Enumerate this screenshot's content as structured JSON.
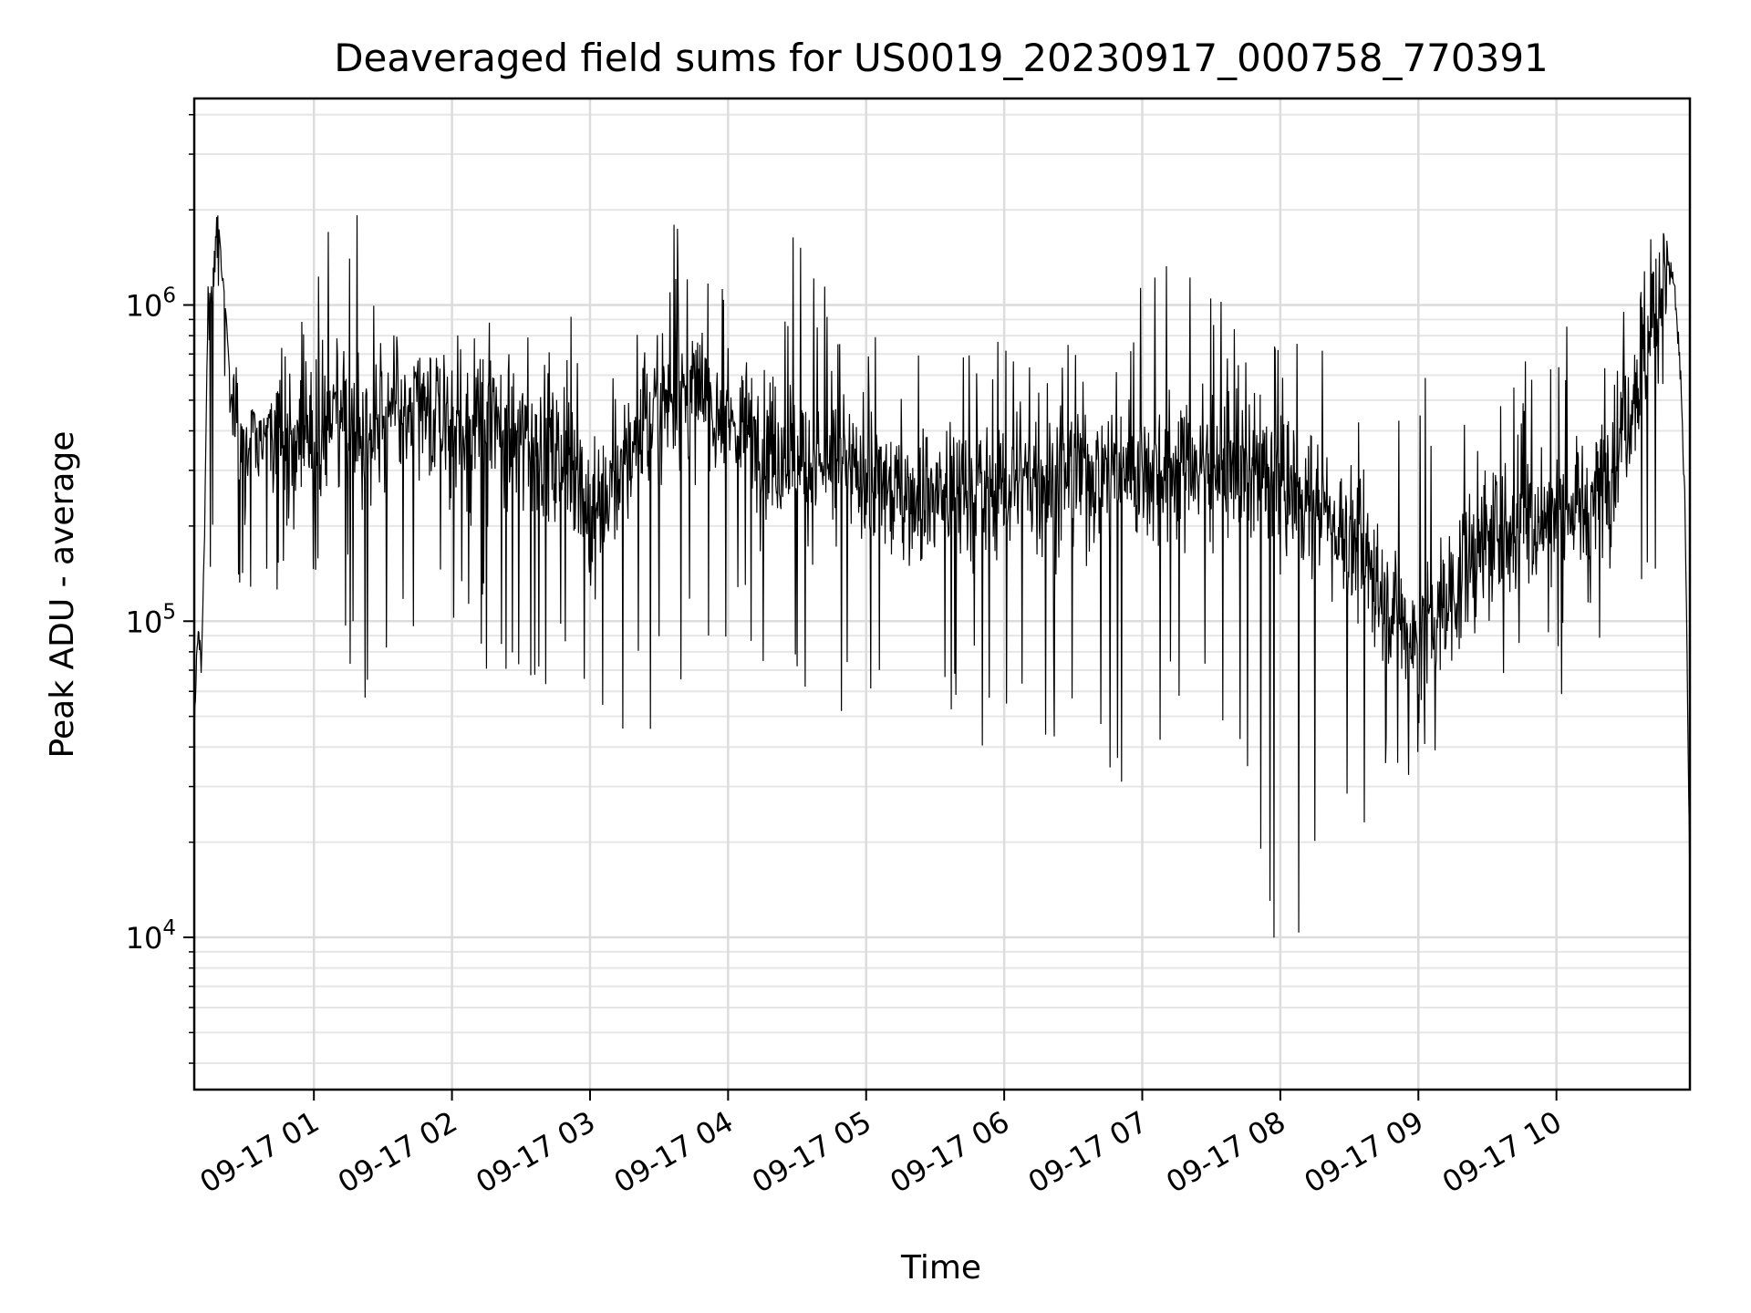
{
  "chart_data": {
    "type": "line",
    "title": "Deaveraged field sums for US0019_20230917_000758_770391",
    "xlabel": "Time",
    "ylabel": "Peak ADU - average",
    "yscale": "log",
    "ylim": [
      3300,
      4500000
    ],
    "xlim": [
      "2023-09-17 00:08",
      "2023-09-17 10:58"
    ],
    "grid": true,
    "line_color": "#000000",
    "x_ticks": [
      {
        "value": "2023-09-17 01:00",
        "label": "09-17 01"
      },
      {
        "value": "2023-09-17 02:00",
        "label": "09-17 02"
      },
      {
        "value": "2023-09-17 03:00",
        "label": "09-17 03"
      },
      {
        "value": "2023-09-17 04:00",
        "label": "09-17 04"
      },
      {
        "value": "2023-09-17 05:00",
        "label": "09-17 05"
      },
      {
        "value": "2023-09-17 06:00",
        "label": "09-17 06"
      },
      {
        "value": "2023-09-17 07:00",
        "label": "09-17 07"
      },
      {
        "value": "2023-09-17 08:00",
        "label": "09-17 08"
      },
      {
        "value": "2023-09-17 09:00",
        "label": "09-17 09"
      },
      {
        "value": "2023-09-17 10:00",
        "label": "09-17 10"
      }
    ],
    "y_ticks": [
      {
        "value": 10000,
        "base": "10",
        "exp": "4"
      },
      {
        "value": 100000,
        "base": "10",
        "exp": "5"
      },
      {
        "value": 1000000,
        "base": "10",
        "exp": "6"
      }
    ],
    "series": [
      {
        "x": [
          "2023-09-17 00:08",
          "2023-09-17 00:09",
          "2023-09-17 00:10",
          "2023-09-17 00:11",
          "2023-09-17 00:12",
          "2023-09-17 00:13",
          "2023-09-17 00:14",
          "2023-09-17 00:15",
          "2023-09-17 00:16",
          "2023-09-17 00:18",
          "2023-09-17 00:20",
          "2023-09-17 00:22",
          "2023-09-17 00:24",
          "2023-09-17 00:26",
          "2023-09-17 00:28",
          "2023-09-17 00:30",
          "2023-09-17 00:33",
          "2023-09-17 00:36",
          "2023-09-17 00:40",
          "2023-09-17 00:45",
          "2023-09-17 00:50",
          "2023-09-17 00:55",
          "2023-09-17 01:00",
          "2023-09-17 01:10",
          "2023-09-17 01:20",
          "2023-09-17 01:30",
          "2023-09-17 01:40",
          "2023-09-17 01:50",
          "2023-09-17 02:00",
          "2023-09-17 02:15",
          "2023-09-17 02:30",
          "2023-09-17 02:45",
          "2023-09-17 02:55",
          "2023-09-17 03:00",
          "2023-09-17 03:10",
          "2023-09-17 03:20",
          "2023-09-17 03:30",
          "2023-09-17 03:40",
          "2023-09-17 03:50",
          "2023-09-17 04:00",
          "2023-09-17 04:15",
          "2023-09-17 04:30",
          "2023-09-17 04:45",
          "2023-09-17 05:00",
          "2023-09-17 05:20",
          "2023-09-17 05:40",
          "2023-09-17 06:00",
          "2023-09-17 06:20",
          "2023-09-17 06:40",
          "2023-09-17 07:00",
          "2023-09-17 07:20",
          "2023-09-17 07:40",
          "2023-09-17 08:00",
          "2023-09-17 08:20",
          "2023-09-17 08:40",
          "2023-09-17 08:50",
          "2023-09-17 09:00",
          "2023-09-17 09:10",
          "2023-09-17 09:20",
          "2023-09-17 09:30",
          "2023-09-17 09:45",
          "2023-09-17 10:00",
          "2023-09-17 10:10",
          "2023-09-17 10:20",
          "2023-09-17 10:30",
          "2023-09-17 10:35",
          "2023-09-17 10:40",
          "2023-09-17 10:45",
          "2023-09-17 10:48",
          "2023-09-17 10:51",
          "2023-09-17 10:54",
          "2023-09-17 10:56",
          "2023-09-17 10:58"
        ],
        "values": [
          45000,
          75000,
          95000,
          70000,
          140000,
          350000,
          1050000,
          950000,
          1100000,
          1800000,
          1200000,
          800000,
          450000,
          600000,
          380000,
          350000,
          420000,
          380000,
          400000,
          420000,
          380000,
          420000,
          400000,
          450000,
          420000,
          460000,
          430000,
          440000,
          420000,
          390000,
          380000,
          350000,
          300000,
          200000,
          280000,
          360000,
          480000,
          520000,
          500000,
          420000,
          380000,
          330000,
          300000,
          280000,
          250000,
          260000,
          270000,
          280000,
          300000,
          310000,
          320000,
          300000,
          280000,
          220000,
          150000,
          100000,
          90000,
          110000,
          140000,
          180000,
          200000,
          220000,
          230000,
          280000,
          420000,
          600000,
          800000,
          1100000,
          1300000,
          1200000,
          600000,
          200000,
          14000
        ],
        "envelope": {
          "upper": [
            120000,
            180000,
            250000,
            800000,
            1300000,
            2500000,
            1400000,
            700000,
            700000,
            850000,
            900000,
            950000,
            900000,
            950000,
            850000,
            800000,
            1800000,
            1700000,
            1900000,
            1900000,
            1700000,
            1200000,
            900000,
            850000,
            800000,
            750000,
            800000,
            800000,
            750000,
            750000,
            750000,
            800000,
            1500000,
            1400000,
            1100000,
            900000,
            800000,
            750000,
            800000,
            750000,
            750000,
            700000,
            650000,
            600000,
            650000,
            700000,
            900000,
            1000000,
            1300000,
            1800000,
            1100000
          ],
          "lower": [
            45000,
            60000,
            70000,
            150000,
            100000,
            80000,
            50000,
            60000,
            80000,
            70000,
            60000,
            60000,
            60000,
            50000,
            40000,
            30000,
            50000,
            60000,
            60000,
            60000,
            60000,
            60000,
            40000,
            40000,
            40000,
            50000,
            40000,
            40000,
            40000,
            40000,
            40000,
            30000,
            30000,
            30000,
            30000,
            20000,
            10000,
            7000,
            4500,
            15000,
            25000,
            30000,
            30000,
            40000,
            50000,
            50000,
            60000,
            80000,
            100000,
            150000,
            50000
          ]
        }
      }
    ]
  }
}
